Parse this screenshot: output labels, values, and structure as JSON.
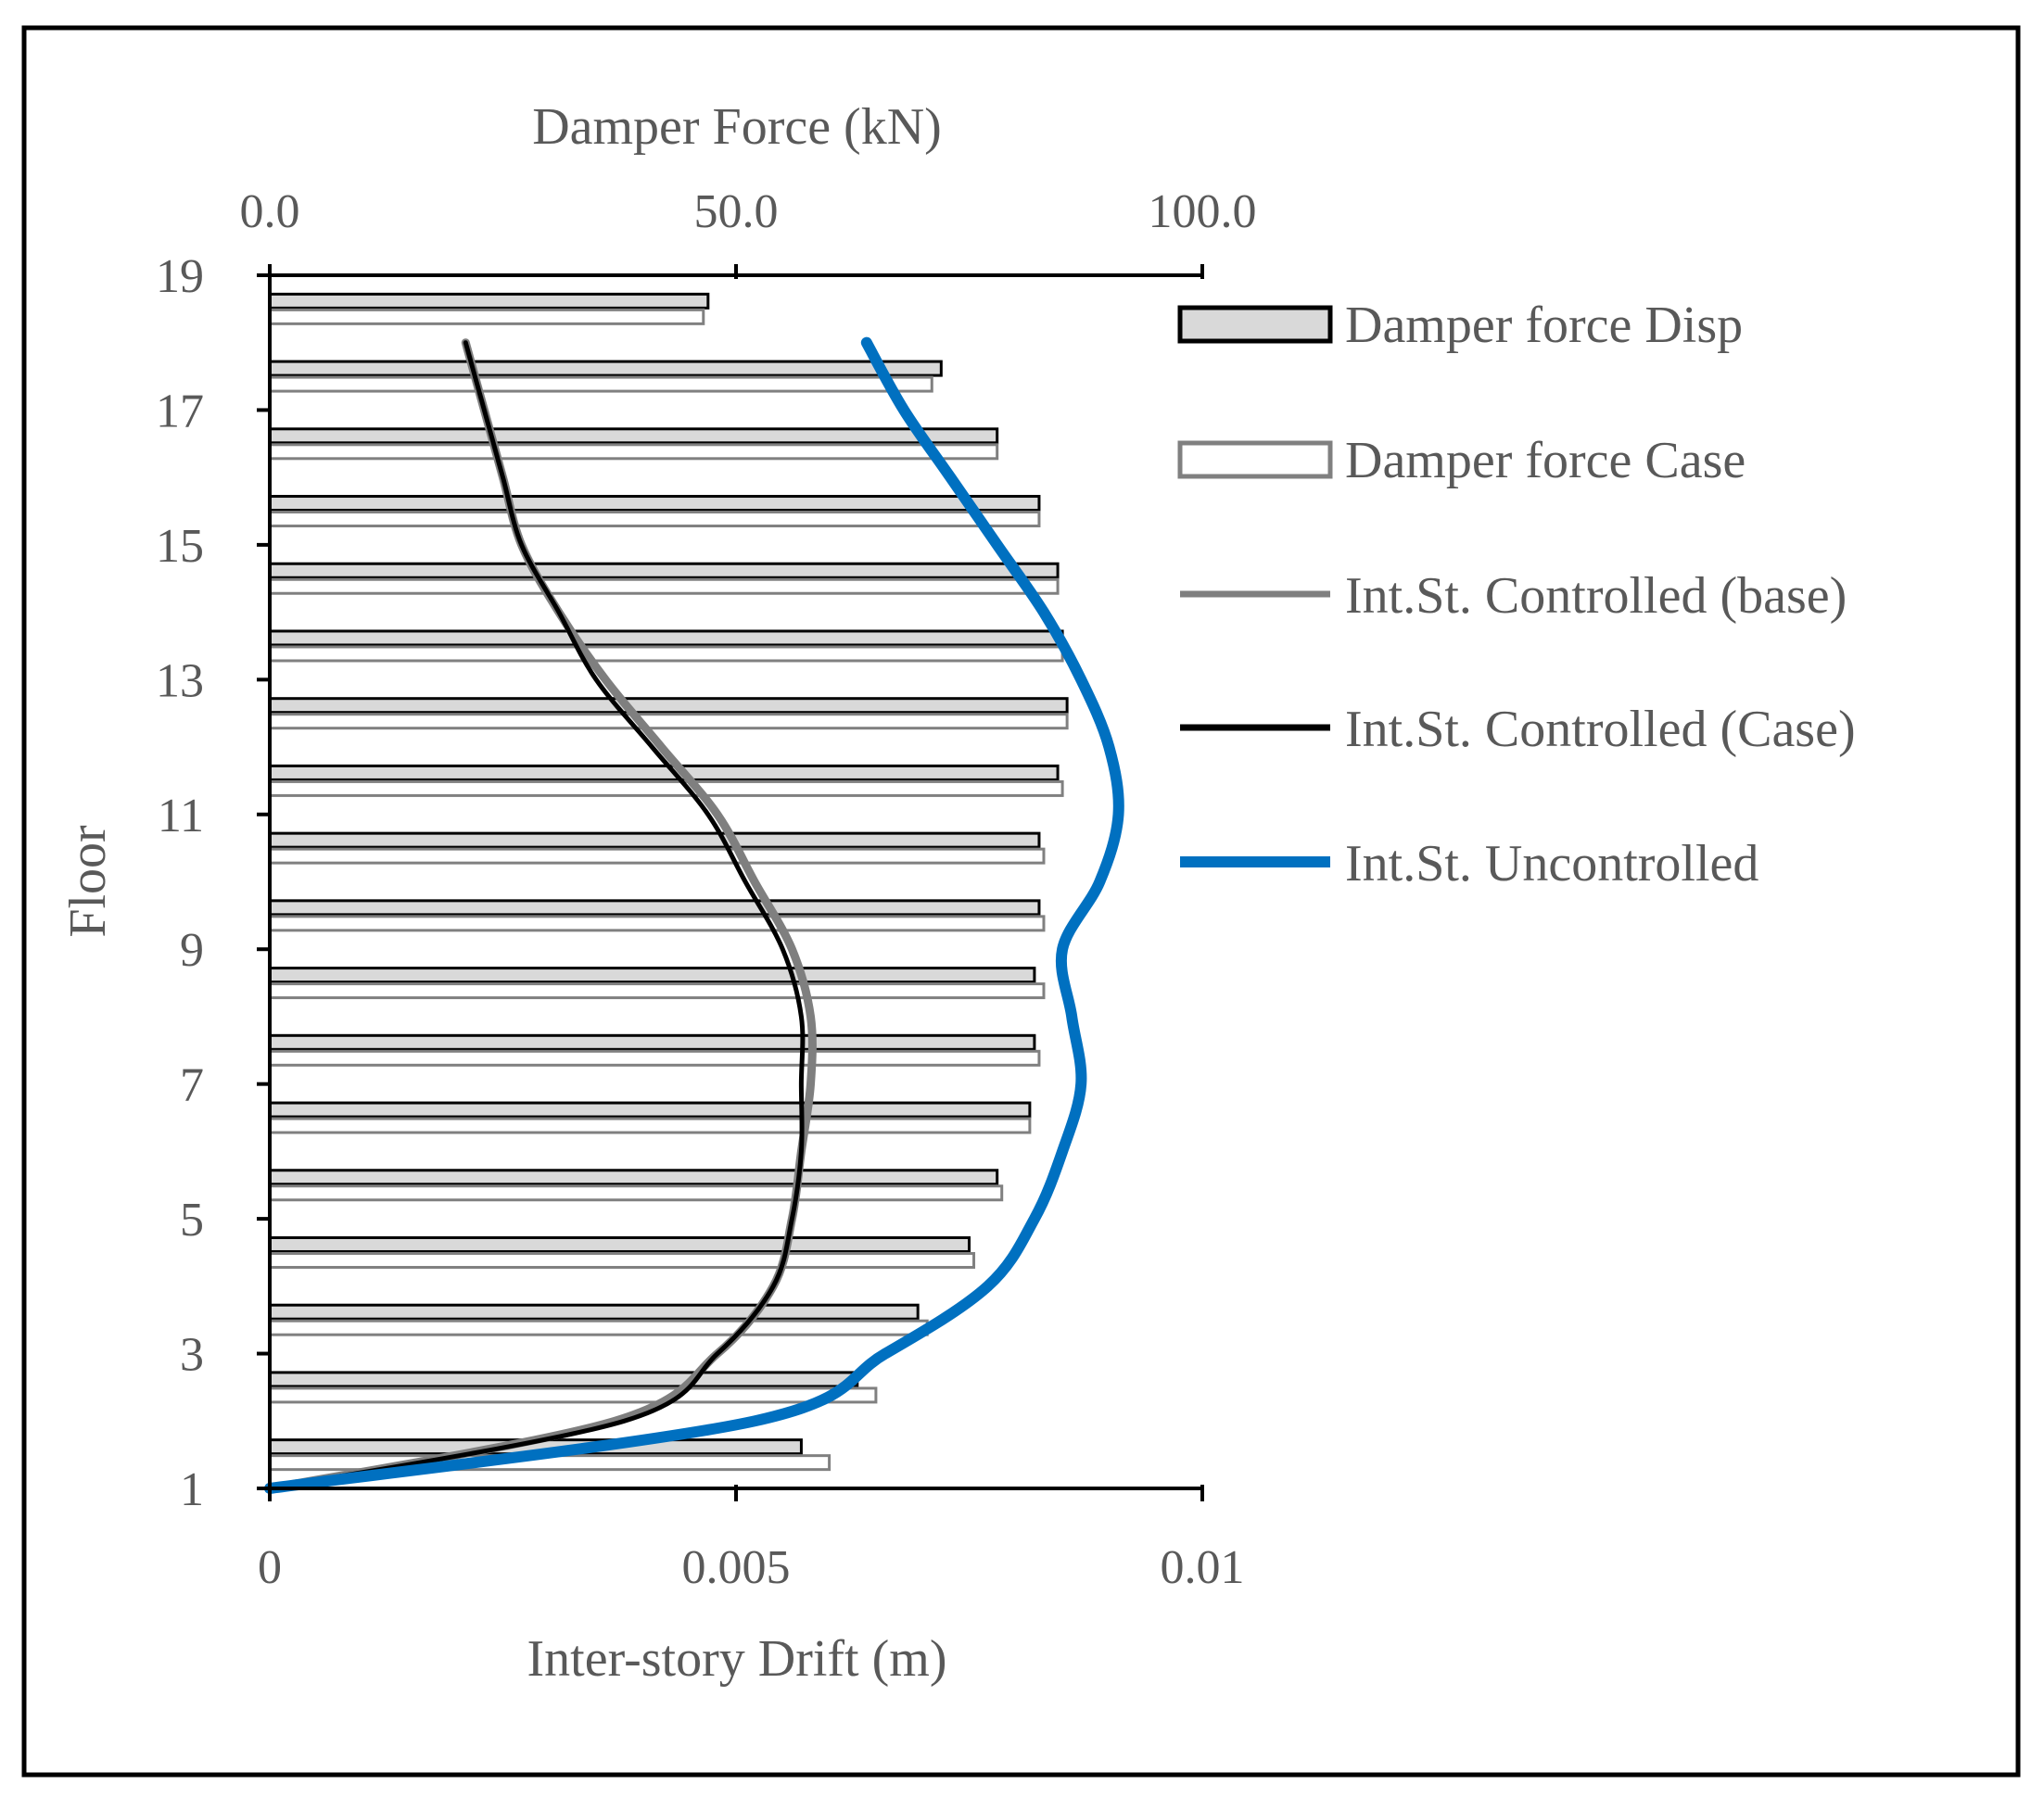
{
  "chart_data": {
    "type": "bar",
    "orientation": "horizontal",
    "top_axis": {
      "title": "Damper Force (kN)",
      "range": [
        0,
        100
      ],
      "ticks": [
        "0.0",
        "50.0",
        "100.0"
      ],
      "tick_values": [
        0,
        50,
        100
      ]
    },
    "bottom_axis": {
      "title": "Inter-story Drift (m)",
      "range": [
        0,
        0.01
      ],
      "ticks": [
        "0",
        "0.005",
        "0.01"
      ],
      "tick_values": [
        0,
        0.005,
        0.01
      ]
    },
    "y_axis": {
      "title": "Floor",
      "range": [
        1,
        19
      ],
      "ticks": [
        "1",
        "3",
        "5",
        "7",
        "9",
        "11",
        "13",
        "15",
        "17",
        "19"
      ],
      "tick_values": [
        1,
        3,
        5,
        7,
        9,
        11,
        13,
        15,
        17,
        19
      ]
    },
    "bar_series": [
      {
        "name": "Damper force Disp",
        "fill": "#d9d9d9",
        "stroke": "#000000",
        "floors": [
          1.5,
          2.5,
          3.5,
          4.5,
          5.5,
          6.5,
          7.5,
          8.5,
          9.5,
          10.5,
          11.5,
          12.5,
          13.5,
          14.5,
          15.5,
          16.5,
          17.5,
          18.5
        ],
        "values": [
          57,
          63,
          69.5,
          75,
          78,
          81.5,
          82,
          82,
          82.5,
          82.5,
          84.5,
          85.5,
          85,
          84.5,
          82.5,
          78,
          72,
          47
        ]
      },
      {
        "name": "Damper force Case",
        "fill": "#ffffff",
        "stroke": "#808080",
        "floors": [
          1.5,
          2.5,
          3.5,
          4.5,
          5.5,
          6.5,
          7.5,
          8.5,
          9.5,
          10.5,
          11.5,
          12.5,
          13.5,
          14.5,
          15.5,
          16.5,
          17.5,
          18.5
        ],
        "values": [
          60,
          65,
          70.5,
          75.5,
          78.5,
          81.5,
          82.5,
          83,
          83,
          83,
          85,
          85.5,
          85,
          84.5,
          82.5,
          78,
          71,
          46.5
        ]
      }
    ],
    "line_series": [
      {
        "name": "Int.St. Controlled (base)",
        "color": "#7f7f7f",
        "floors": [
          1,
          2,
          3,
          4,
          5,
          6,
          7,
          8,
          9,
          10,
          11,
          12,
          13,
          14,
          15,
          16,
          17,
          18
        ],
        "values": [
          0,
          0.0037,
          0.0048,
          0.0054,
          0.0056,
          0.0057,
          0.0058,
          0.0058,
          0.0056,
          0.0052,
          0.0048,
          0.0042,
          0.0036,
          0.0031,
          0.0027,
          0.0025,
          0.0023,
          0.0021
        ]
      },
      {
        "name": "Int.St. Controlled (Case)",
        "color": "#000000",
        "floors": [
          1,
          2,
          3,
          4,
          5,
          6,
          7,
          8,
          9,
          10,
          11,
          12,
          13,
          14,
          15,
          16,
          17,
          18
        ],
        "values": [
          0,
          0.0038,
          0.0048,
          0.0054,
          0.0056,
          0.0057,
          0.0057,
          0.0057,
          0.0055,
          0.0051,
          0.0047,
          0.0041,
          0.0035,
          0.0031,
          0.0027,
          0.0025,
          0.0023,
          0.0021
        ]
      },
      {
        "name": "Int.St. Uncontrolled",
        "color": "#0070c0",
        "floors": [
          1,
          2,
          3,
          4,
          5,
          6,
          7,
          8,
          9,
          10,
          11,
          12,
          13,
          14,
          15,
          16,
          17,
          18
        ],
        "values": [
          0,
          0.0052,
          0.0066,
          0.0077,
          0.0082,
          0.0085,
          0.0087,
          0.0086,
          0.0085,
          0.0089,
          0.0091,
          0.009,
          0.0087,
          0.0083,
          0.0078,
          0.0073,
          0.0068,
          0.0064
        ]
      }
    ],
    "legend_position": "right",
    "grid": false
  }
}
